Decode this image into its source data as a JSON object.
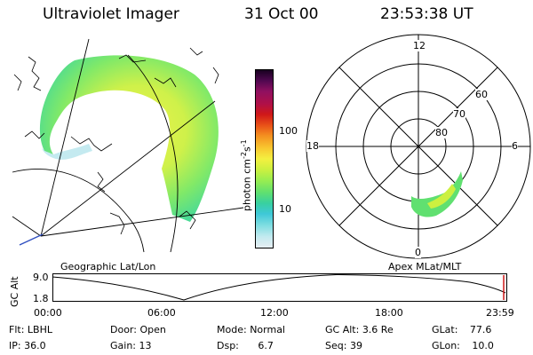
{
  "header": {
    "instrument": "Ultraviolet Imager",
    "date": "31 Oct 00",
    "time": "23:53:38 UT"
  },
  "colorbar": {
    "unit_label": "photon cm",
    "unit_exp1": "-2",
    "unit_mid": "s",
    "unit_exp2": "-1",
    "tick_high": "100",
    "tick_low": "10",
    "colors_bottom_to_top": [
      "#e6eef2",
      "#c4eaf0",
      "#7adce0",
      "#3ec8d8",
      "#38d0a0",
      "#60e070",
      "#9aee50",
      "#ccf040",
      "#f4f040",
      "#f8c830",
      "#f49020",
      "#e85018",
      "#d01818",
      "#b01048",
      "#901060",
      "#500850",
      "#180020"
    ]
  },
  "polar": {
    "mlt_labels": {
      "top": "12",
      "left": "18",
      "right": "6",
      "bottom": "0"
    },
    "lat_labels": [
      "60",
      "70",
      "80"
    ]
  },
  "panels": {
    "left_caption": "Geographic Lat/Lon",
    "right_caption": "Apex MLat/MLT"
  },
  "altitude_plot": {
    "axis_label": "GC Alt",
    "y_ticks": [
      "9.0",
      "1.8"
    ],
    "time_ticks": [
      "00:00",
      "06:00",
      "12:00",
      "18:00",
      "23:59"
    ]
  },
  "status": [
    [
      {
        "k": "Flt:",
        "v": "LBHL"
      },
      {
        "k": "Door:",
        "v": "Open"
      },
      {
        "k": "Mode:",
        "v": "Normal"
      },
      {
        "k": "GC Alt:",
        "v": "3.6 Re"
      },
      {
        "k": "GLat:",
        "v": "77.6"
      }
    ],
    [
      {
        "k": "IP:",
        "v": "36.0"
      },
      {
        "k": "Gain:",
        "v": "13"
      },
      {
        "k": "Dsp:",
        "v": "6.7"
      },
      {
        "k": "Seq:",
        "v": "39"
      },
      {
        "k": "GLon:",
        "v": "10.0"
      }
    ]
  ]
}
